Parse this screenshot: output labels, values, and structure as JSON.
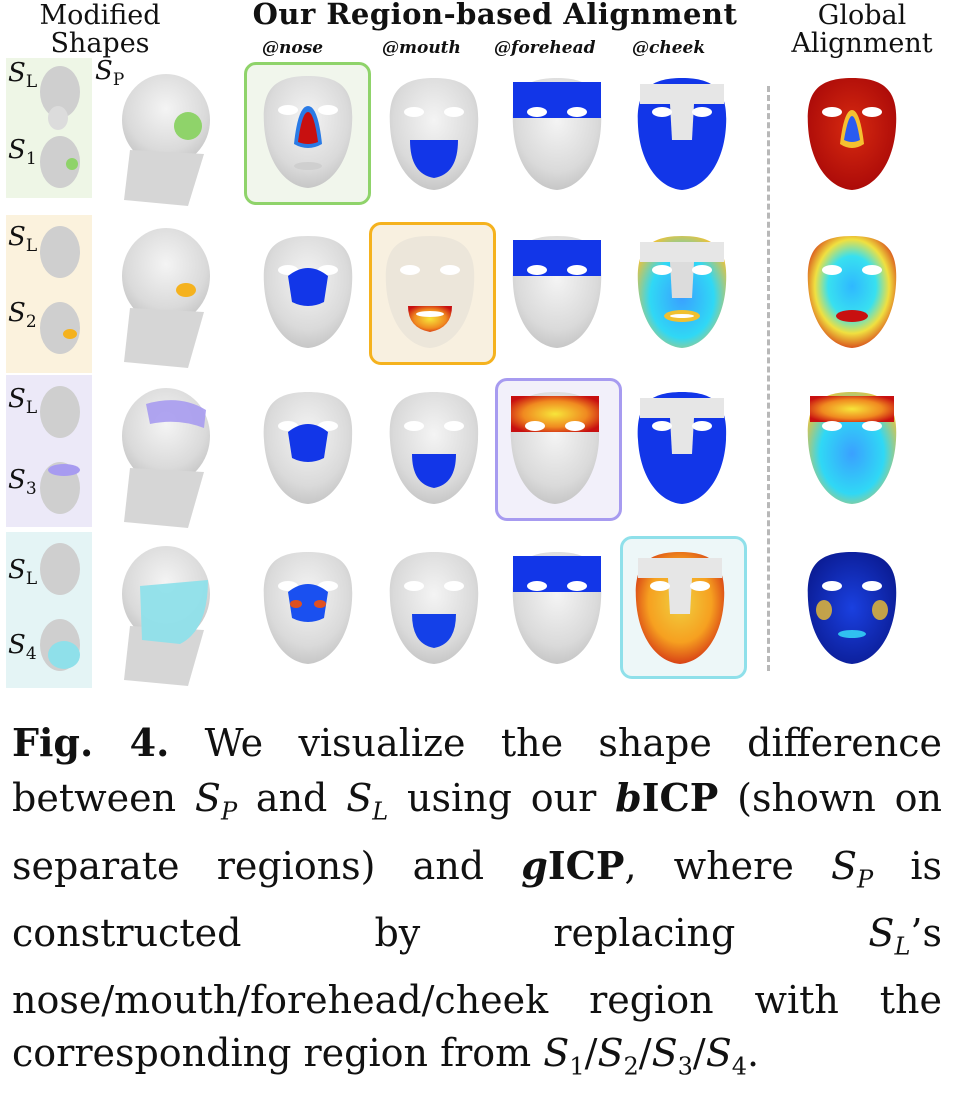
{
  "header": {
    "modified_line1": "Modified",
    "modified_line2": "Shapes",
    "ours": "Our Region-based Alignment",
    "global_line1": "Global",
    "global_line2": "Alignment"
  },
  "regions": [
    "@nose",
    "@mouth",
    "@forehead",
    "@cheek"
  ],
  "symbols": {
    "sp_letter": "S",
    "sp_sub": "P",
    "sl_letter": "S",
    "sl_sub": "L",
    "rows": [
      {
        "letter": "S",
        "sub": "1"
      },
      {
        "letter": "S",
        "sub": "2"
      },
      {
        "letter": "S",
        "sub": "3"
      },
      {
        "letter": "S",
        "sub": "4"
      }
    ]
  },
  "colors": {
    "row1": "#8fd36a",
    "row2": "#f5b21e",
    "row3": "#a79bf0",
    "row4": "#8fe0ea",
    "strip1": "#eef6e6",
    "strip2": "#fbf2dd",
    "strip3": "#ece9f8",
    "strip4": "#e4f4f5",
    "heat_blue": "#1236e8",
    "heat_red": "#c81010",
    "heat_yellow": "#f7e53a",
    "face_grey": "#e1e1e1"
  },
  "caption": {
    "fig_label": "Fig. 4.",
    "t1": " We visualize the shape difference between ",
    "sp_letter": "S",
    "sp_sub": "P",
    "t2": " and ",
    "sl_letter": "S",
    "sl_sub": "L",
    "t3": " using our ",
    "bicp_prefix": "b",
    "icp": "ICP",
    "t4": " (shown on separate regions) and ",
    "gicp_prefix": "g",
    "t5": ", where ",
    "t6": " is constructed by replacing ",
    "t7": "’s nose/mouth/forehead/cheek region with the corresponding region from ",
    "s1": "1",
    "s2": "2",
    "s3": "3",
    "s4": "4",
    "slash": "/",
    "t8": "."
  }
}
